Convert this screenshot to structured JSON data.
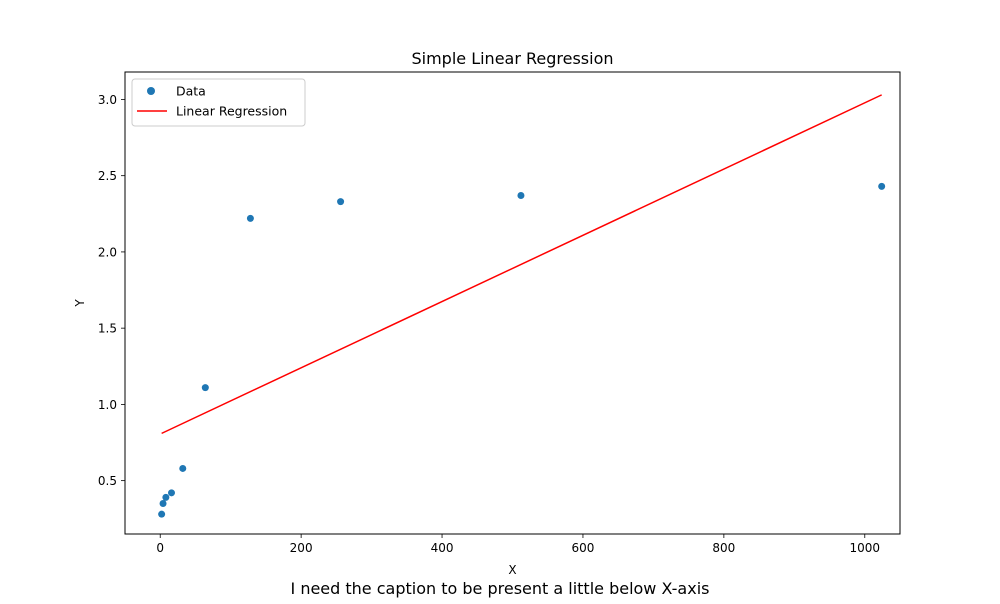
{
  "chart_data": {
    "type": "scatter",
    "title": "Simple Linear Regression",
    "xlabel": "X",
    "ylabel": "Y",
    "caption": "I need the caption to be present a little below X-axis",
    "xlim": [
      -50,
      1050
    ],
    "ylim": [
      0.15,
      3.18
    ],
    "xticks": [
      0,
      200,
      400,
      600,
      800,
      1000
    ],
    "xtick_labels": [
      "0",
      "200",
      "400",
      "600",
      "800",
      "1000"
    ],
    "yticks": [
      0.5,
      1.0,
      1.5,
      2.0,
      2.5,
      3.0
    ],
    "ytick_labels": [
      "0.5",
      "1.0",
      "1.5",
      "2.0",
      "2.5",
      "3.0"
    ],
    "grid": false,
    "legend_position": "top-left",
    "series": [
      {
        "name": "Data",
        "kind": "scatter",
        "color": "#1f77b4",
        "x": [
          2,
          4,
          8,
          16,
          32,
          64,
          128,
          256,
          512,
          1024
        ],
        "y": [
          0.28,
          0.35,
          0.39,
          0.42,
          0.58,
          1.11,
          2.22,
          2.33,
          2.37,
          2.43
        ]
      },
      {
        "name": "Linear Regression",
        "kind": "line",
        "color": "#ff0000",
        "x": [
          2,
          1024
        ],
        "y": [
          0.81,
          3.03
        ]
      }
    ]
  }
}
